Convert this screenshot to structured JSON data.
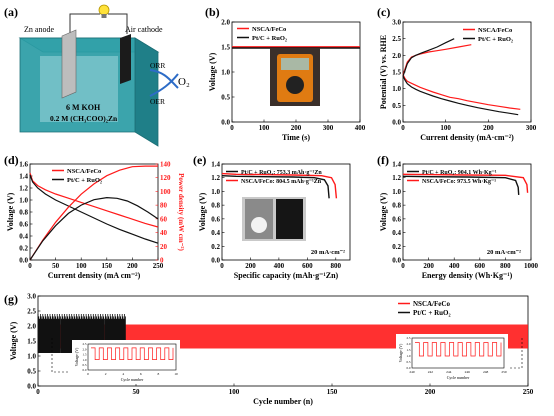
{
  "panel_labels": [
    "(a)",
    "(b)",
    "(c)",
    "(d)",
    "(e)",
    "(f)",
    "(g)"
  ],
  "schematic": {
    "anode_label": "Zn anode",
    "cathode_label": "Air cathode",
    "electrolyte_line1": "6 M KOH",
    "electrolyte_line2": "0.2 M (CH₃COO)₂Zn",
    "orr": "ORR",
    "oer": "OER",
    "o2": "O₂"
  },
  "colors": {
    "nsca": "#ff1a1a",
    "ptc": "#111111",
    "tank": "#2a9ca5",
    "tank_top": "#8fd0d6"
  },
  "chart_data": [
    {
      "id": "b",
      "type": "line",
      "xlabel": "Time (s)",
      "ylabel": "Voltage (V)",
      "xlim": [
        0,
        400
      ],
      "ylim": [
        0,
        2.0
      ],
      "xticks": [
        0,
        100,
        200,
        300,
        400
      ],
      "yticks": [
        0.0,
        0.5,
        1.0,
        1.5,
        2.0
      ],
      "legend_position": "top-left",
      "series": [
        {
          "name": "NSCA/FeCo",
          "color": "#ff1a1a",
          "x": [
            0,
            400
          ],
          "y": [
            1.505,
            1.505
          ]
        },
        {
          "name": "Pt/C + RuO₂",
          "color": "#111111",
          "x": [
            0,
            400
          ],
          "y": [
            1.48,
            1.48
          ]
        }
      ]
    },
    {
      "id": "c",
      "type": "line",
      "xlabel": "Current density (mA·cm⁻²)",
      "ylabel": "Potential (V) vs. RHE",
      "xlim": [
        0,
        300
      ],
      "ylim": [
        0.0,
        3.0
      ],
      "xticks": [
        0,
        100,
        200,
        300
      ],
      "yticks": [
        0.0,
        0.5,
        1.0,
        1.5,
        2.0,
        2.5,
        3.0
      ],
      "legend_position": "top-right",
      "series": [
        {
          "name": "NSCA/FeCo",
          "color": "#ff1a1a",
          "x": [
            0,
            5,
            10,
            20,
            30,
            40,
            55,
            70,
            90,
            110,
            130,
            150,
            175,
            200,
            225,
            250,
            275
          ],
          "y": [
            1.42,
            1.3,
            1.22,
            1.16,
            1.1,
            1.04,
            0.97,
            0.9,
            0.82,
            0.74,
            0.7,
            0.64,
            0.58,
            0.52,
            0.47,
            0.42,
            0.38
          ],
          "x2": [
            0,
            5,
            10,
            20,
            30,
            40,
            60,
            80,
            100,
            130,
            160
          ],
          "y2": [
            1.42,
            1.6,
            1.8,
            1.95,
            2.0,
            2.04,
            2.1,
            2.14,
            2.18,
            2.25,
            2.32
          ]
        },
        {
          "name": "Pt/C + RuO₂",
          "color": "#111111",
          "x": [
            0,
            5,
            10,
            20,
            30,
            40,
            55,
            70,
            90,
            110,
            130,
            150,
            175,
            200,
            225,
            250,
            270
          ],
          "y": [
            1.38,
            1.25,
            1.15,
            1.05,
            0.98,
            0.92,
            0.85,
            0.78,
            0.7,
            0.63,
            0.56,
            0.5,
            0.43,
            0.37,
            0.31,
            0.26,
            0.22
          ],
          "x2": [
            0,
            5,
            10,
            20,
            30,
            45,
            60,
            80,
            100,
            120
          ],
          "y2": [
            1.38,
            1.55,
            1.75,
            1.93,
            2.0,
            2.08,
            2.15,
            2.25,
            2.38,
            2.5
          ]
        }
      ]
    },
    {
      "id": "d",
      "type": "line",
      "xlabel": "Current density (mA cm⁻²)",
      "ylabel": "Voltage (V)",
      "ylabel_right": "Power density (mW cm⁻²)",
      "xlim": [
        0,
        250
      ],
      "ylim": [
        0.0,
        1.6
      ],
      "ylim_right": [
        0,
        140
      ],
      "xticks": [
        0,
        50,
        100,
        150,
        200,
        250
      ],
      "yticks": [
        0.0,
        0.2,
        0.4,
        0.6,
        0.8,
        1.0,
        1.2,
        1.4,
        1.6
      ],
      "yticks_right": [
        0,
        20,
        40,
        60,
        80,
        100,
        120,
        140
      ],
      "legend_position": "top-left",
      "series": [
        {
          "name": "NSCA/FeCo",
          "color": "#ff1a1a",
          "kind": "voltage",
          "x": [
            0,
            5,
            15,
            30,
            50,
            75,
            100,
            125,
            150,
            175,
            200,
            225,
            250
          ],
          "y": [
            1.45,
            1.32,
            1.24,
            1.17,
            1.1,
            1.03,
            0.96,
            0.89,
            0.82,
            0.75,
            0.68,
            0.61,
            0.55
          ]
        },
        {
          "name": "Pt/C + RuO₂",
          "color": "#111111",
          "kind": "voltage",
          "x": [
            0,
            5,
            15,
            30,
            50,
            75,
            100,
            125,
            150,
            175,
            200,
            225,
            250
          ],
          "y": [
            1.42,
            1.3,
            1.2,
            1.1,
            1.0,
            0.9,
            0.8,
            0.7,
            0.6,
            0.51,
            0.43,
            0.35,
            0.28
          ]
        },
        {
          "name": "NSCA/FeCo power",
          "color": "#ff1a1a",
          "kind": "power",
          "x": [
            0,
            25,
            50,
            75,
            100,
            125,
            150,
            175,
            200,
            225,
            250
          ],
          "y": [
            0,
            29,
            55,
            77,
            96,
            111,
            123,
            131,
            136,
            137,
            137
          ]
        },
        {
          "name": "Pt/C + RuO₂ power",
          "color": "#111111",
          "kind": "power",
          "x": [
            0,
            25,
            50,
            75,
            100,
            125,
            150,
            170,
            190,
            210,
            230,
            250
          ],
          "y": [
            0,
            28,
            50,
            68,
            80,
            88,
            91,
            90,
            86,
            79,
            70,
            60
          ]
        }
      ]
    },
    {
      "id": "e",
      "type": "line",
      "xlabel": "Specific capacity (mAh·g⁻¹Zn)",
      "ylabel": "Voltage (V)",
      "xlim": [
        0,
        900
      ],
      "ylim": [
        0.0,
        1.4
      ],
      "xticks": [
        0,
        200,
        400,
        600,
        800
      ],
      "yticks": [
        0.0,
        0.2,
        0.4,
        0.6,
        0.8,
        1.0,
        1.2,
        1.4
      ],
      "legend_position": "top-left",
      "annotation": "20 mA·cm⁻²",
      "series": [
        {
          "name": "Pt/C + RuO₂: 753.3 mAh·g⁻¹Zn",
          "color": "#111111",
          "x": [
            0,
            100,
            300,
            500,
            650,
            720,
            745,
            753.3
          ],
          "y": [
            1.23,
            1.22,
            1.215,
            1.21,
            1.2,
            1.17,
            1.08,
            0.9
          ]
        },
        {
          "name": "NSCA/FeCo: 804.5 mAh·g⁻¹Zn",
          "color": "#ff1a1a",
          "x": [
            0,
            100,
            300,
            500,
            700,
            770,
            795,
            804.5
          ],
          "y": [
            1.26,
            1.25,
            1.245,
            1.24,
            1.23,
            1.2,
            1.1,
            0.9
          ]
        }
      ]
    },
    {
      "id": "f",
      "type": "line",
      "xlabel": "Energy density (Wh·Kg⁻¹)",
      "ylabel": "Voltage (V)",
      "xlim": [
        0,
        1000
      ],
      "ylim": [
        0.0,
        1.4
      ],
      "xticks": [
        0,
        200,
        400,
        600,
        800,
        1000
      ],
      "yticks": [
        0.0,
        0.2,
        0.4,
        0.6,
        0.8,
        1.0,
        1.2,
        1.4
      ],
      "legend_position": "top-left",
      "annotation": "20 mA·cm⁻²",
      "series": [
        {
          "name": "Pt/C + RuO₂: 904.1 Wh·Kg⁻¹",
          "color": "#111111",
          "x": [
            0,
            200,
            500,
            800,
            880,
            900,
            904.1
          ],
          "y": [
            1.22,
            1.215,
            1.21,
            1.2,
            1.16,
            1.06,
            0.95
          ]
        },
        {
          "name": "NSCA/FeCo: 973.5 Wh·Kg⁻¹",
          "color": "#ff1a1a",
          "x": [
            0,
            200,
            500,
            800,
            940,
            968,
            973.5
          ],
          "y": [
            1.25,
            1.245,
            1.24,
            1.235,
            1.2,
            1.1,
            0.98
          ]
        }
      ]
    },
    {
      "id": "g",
      "type": "line",
      "xlabel": "Cycle number (n)",
      "ylabel": "Voltage (V)",
      "xlim": [
        0,
        250
      ],
      "ylim": [
        0.0,
        3.0
      ],
      "xticks": [
        0,
        50,
        100,
        150,
        200,
        250
      ],
      "yticks": [
        0.0,
        0.5,
        1.0,
        1.5,
        2.0,
        2.5,
        3.0
      ],
      "legend_position": "top-right",
      "series": [
        {
          "name": "NSCA/FeCo",
          "color": "#ff1a1a",
          "x_range": [
            0,
            250
          ],
          "charge_v": 2.05,
          "discharge_v": 1.25
        },
        {
          "name": "Pt/C + RuO₂",
          "color": "#111111",
          "x_range": [
            0,
            45
          ],
          "charge_v": 2.4,
          "discharge_v": 1.1
        }
      ],
      "insets": [
        {
          "position": "left",
          "xlabel": "Cycle number",
          "ylabel": "Voltage (V)",
          "xticks": [
            "0",
            "2",
            "4",
            "6",
            "8",
            "10"
          ],
          "yticks": [
            "0.0",
            "0.5",
            "1.0",
            "1.5",
            "2.0",
            "2.5"
          ]
        },
        {
          "position": "right",
          "xlabel": "Cycle number",
          "ylabel": "Voltage (V)",
          "xticks": [
            "240",
            "242",
            "244",
            "246",
            "248",
            "250"
          ],
          "yticks": [
            "0.0",
            "0.5",
            "1.0",
            "1.5",
            "2.0",
            "2.5"
          ]
        }
      ]
    }
  ]
}
